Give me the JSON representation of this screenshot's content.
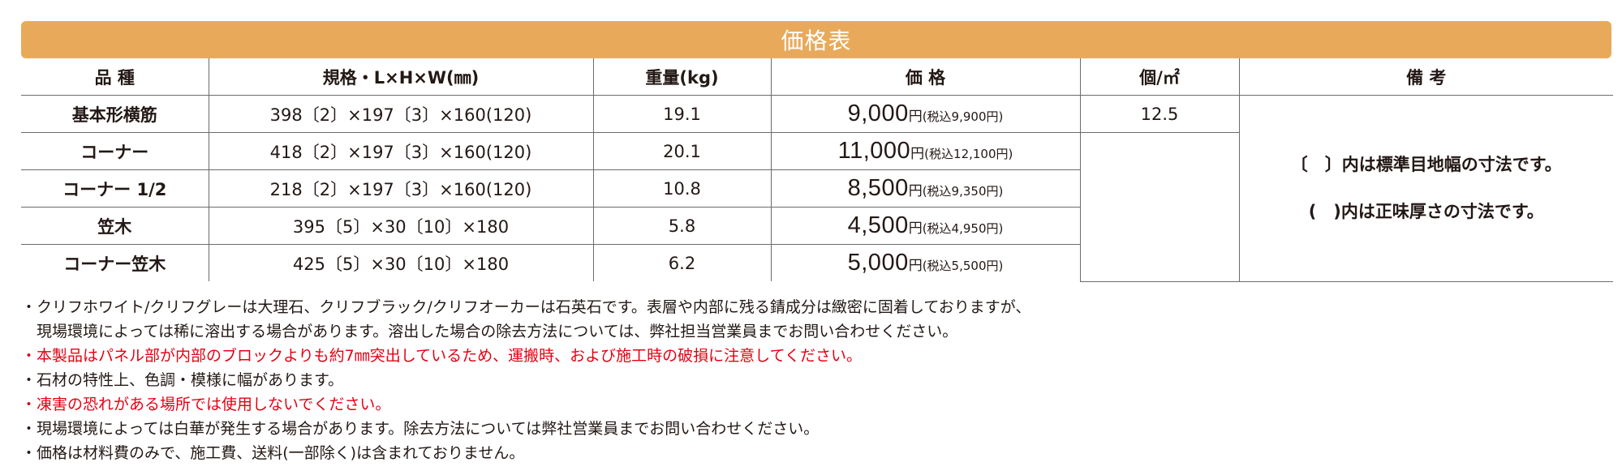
{
  "title": "価格表",
  "headers": [
    "品 種",
    "規格・L×H×W(㎜)",
    "重量(kg)",
    "価 格",
    "個/㎡",
    "備 考"
  ],
  "rows": [
    {
      "name": "基本形横筋",
      "spec": "398〔2〕×197〔3〕×160(120)",
      "weight": "19.1",
      "price": "9,000",
      "yen": "円",
      "tax": "(税込9,900円)"
    },
    {
      "name": "コーナー",
      "spec": "418〔2〕×197〔3〕×160(120)",
      "weight": "20.1",
      "price": "11,000",
      "yen": "円",
      "tax": "(税込12,100円)"
    },
    {
      "name": "コーナー 1/2",
      "spec": "218〔2〕×197〔3〕×160(120)",
      "weight": "10.8",
      "price": "8,500",
      "yen": "円",
      "tax": "(税込9,350円)"
    },
    {
      "name": "笠木",
      "spec": "395〔5〕×30〔10〕×180",
      "weight": "5.8",
      "price": "4,500",
      "yen": "円",
      "tax": "(税込4,950円)"
    },
    {
      "name": "コーナー笠木",
      "spec": "425〔5〕×30〔10〕×180",
      "weight": "6.2",
      "price": "5,000",
      "yen": "円",
      "tax": "(税込5,500円)"
    }
  ],
  "per_sqm": "12.5",
  "notes": [
    "〔　〕内は標準目地幅の寸法です。",
    "(　)内は正味厚さの寸法です。"
  ],
  "footnotes": [
    {
      "text": "・クリフホワイト/クリフグレーは大理石、クリフブラック/クリフオーカーは石英石です。表層や内部に残る錆成分は緻密に固着しておりますが、",
      "color": "#231815"
    },
    {
      "text": "　現場環境によっては稀に溶出する場合があります。溶出した場合の除去方法については、弊社担当営業員までお問い合わせください。",
      "color": "#231815"
    },
    {
      "text": "・本製品はパネル部が内部のブロックよりも約7㎜突出しているため、運搬時、および施工時の破損に注意してください。",
      "color": "#e60012"
    },
    {
      "text": "・石材の特性上、色調・模様に幅があります。",
      "color": "#231815"
    },
    {
      "text": "・凍害の恐れがある場所では使用しないでください。",
      "color": "#e60012"
    },
    {
      "text": "・現場環境によっては白華が発生する場合があります。除去方法については弊社営業員までお問い合わせください。",
      "color": "#231815"
    },
    {
      "text": "・価格は材料費のみで、施工費、送料(一部除く)は含まれておりません。",
      "color": "#231815"
    }
  ],
  "colors": {
    "banner": "#e8aa5a",
    "warning_text": "#e60012"
  }
}
